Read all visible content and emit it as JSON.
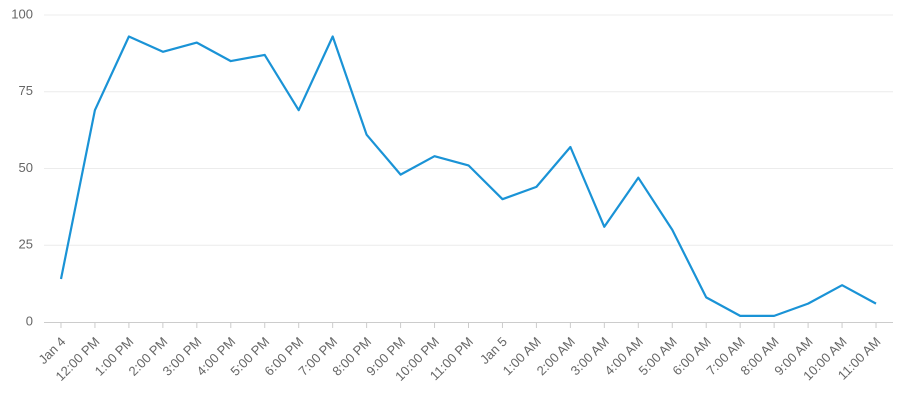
{
  "chart_data": {
    "type": "line",
    "categories": [
      "Jan 4",
      "12:00 PM",
      "1:00 PM",
      "2:00 PM",
      "3:00 PM",
      "4:00 PM",
      "5:00 PM",
      "6:00 PM",
      "7:00 PM",
      "8:00 PM",
      "9:00 PM",
      "10:00 PM",
      "11:00 PM",
      "Jan 5",
      "1:00 AM",
      "2:00 AM",
      "3:00 AM",
      "4:00 AM",
      "5:00 AM",
      "6:00 AM",
      "7:00 AM",
      "8:00 AM",
      "9:00 AM",
      "10:00 AM",
      "11:00 AM"
    ],
    "values": [
      14,
      69,
      93,
      88,
      91,
      85,
      87,
      69,
      93,
      61,
      48,
      54,
      51,
      40,
      44,
      57,
      31,
      47,
      30,
      8,
      2,
      2,
      6,
      12,
      6
    ],
    "color": "#1a93d6",
    "ylim": [
      0,
      100
    ],
    "yticks": [
      0,
      25,
      50,
      75,
      100
    ],
    "grid": true
  }
}
